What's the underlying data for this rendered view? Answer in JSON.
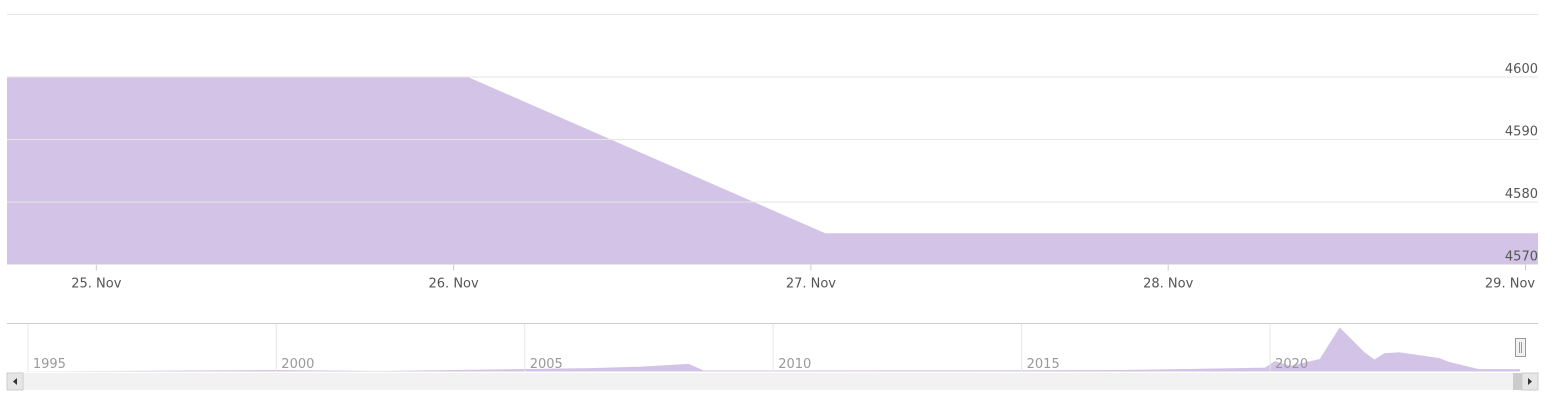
{
  "chart_data": [
    {
      "type": "area",
      "color": "#d3c4e7",
      "x": [
        24.75,
        26.04,
        27.04,
        29.035
      ],
      "values": [
        4600,
        4600,
        4575,
        4575
      ],
      "xlim": [
        24.75,
        29.035
      ],
      "xticks": [
        {
          "value": 25,
          "label": "25. Nov"
        },
        {
          "value": 26,
          "label": "26. Nov"
        },
        {
          "value": 27,
          "label": "27. Nov"
        },
        {
          "value": 28,
          "label": "28. Nov"
        },
        {
          "value": 29,
          "label": "29. Nov"
        }
      ],
      "ylim": [
        4570,
        4610
      ],
      "yticks": [
        4570,
        4580,
        4590,
        4600
      ],
      "grid": true
    },
    {
      "type": "navigator",
      "color": "#d3c4e7",
      "x": [
        1994.58,
        2000,
        2002,
        2006.3,
        2007.3,
        2008.3,
        2008.6,
        2010,
        2017,
        2019.9,
        2020.1,
        2020.4,
        2021,
        2021.4,
        2021.9,
        2022.1,
        2022.3,
        2022.6,
        2023.4,
        2023.6,
        2024.2,
        2025.03
      ],
      "values": [
        0,
        3,
        1,
        7,
        10,
        16,
        2,
        2,
        3,
        8,
        22,
        12,
        26,
        92,
        40,
        25,
        38,
        40,
        28,
        20,
        5,
        5
      ],
      "xlim": [
        1994.58,
        2025.03
      ],
      "ylim": [
        0,
        100
      ],
      "xticks": [
        1995,
        2000,
        2005,
        2010,
        2015,
        2020
      ]
    }
  ]
}
